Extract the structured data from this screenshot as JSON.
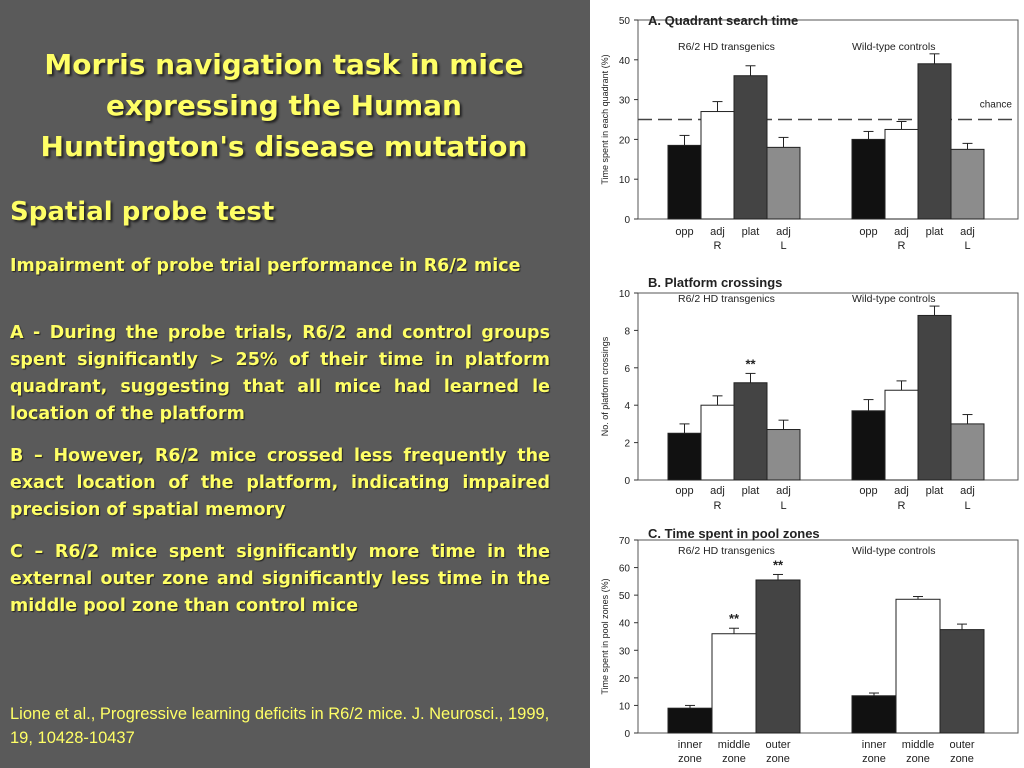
{
  "slide": {
    "title": "Morris navigation task in mice expressing the Human Huntington's disease mutation",
    "subtitle": "Spatial probe test",
    "paragraphs": [
      "Impairment of probe trial performance in R6/2 mice",
      "A - During the probe trials, R6/2 and control groups spent significantly > 25% of their time in platform quadrant, suggesting that all mice had learned le location of the platform",
      "B – However, R6/2 mice crossed less frequently the exact location of the platform, indicating impaired precision of spatial memory",
      "C – R6/2 mice spent significantly more time in the external outer zone and significantly less time in the middle pool zone than control mice"
    ],
    "citation": "Lione et al., Progressive learning deficits in R6/2 mice. J. Neurosci., 1999, 19, 10428-10437"
  },
  "colors": {
    "background": "#5a5a5a",
    "text": "#ffff66",
    "black_bar": "#111111",
    "white_bar": "#ffffff",
    "dark_bar": "#444444",
    "gray_bar": "#8c8c8c"
  },
  "chart_data": [
    {
      "type": "bar",
      "title": "A. Quadrant search time",
      "ylabel": "Time spent in each quadrant (%)",
      "ylim": [
        0,
        50
      ],
      "yticks": [
        0,
        10,
        20,
        30,
        40,
        50
      ],
      "groups": [
        "R6/2 HD transgenics",
        "Wild-type controls"
      ],
      "categories": [
        "opp",
        "adj R",
        "plat",
        "adj L"
      ],
      "category_lines": [
        [
          "opp",
          ""
        ],
        [
          "adj",
          "R"
        ],
        [
          "plat",
          ""
        ],
        [
          "adj",
          "L"
        ]
      ],
      "series": [
        {
          "values": [
            18.5,
            27,
            36,
            18
          ],
          "errors": [
            2.5,
            2.5,
            2.5,
            2.5
          ]
        },
        {
          "values": [
            20,
            22.5,
            39,
            17.5
          ],
          "errors": [
            2,
            2,
            2.5,
            1.5
          ]
        }
      ],
      "reference_line": {
        "value": 25,
        "label": "chance"
      }
    },
    {
      "type": "bar",
      "title": "B. Platform crossings",
      "ylabel": "No. of platform crossings",
      "ylim": [
        0,
        10
      ],
      "yticks": [
        0,
        2,
        4,
        6,
        8,
        10
      ],
      "groups": [
        "R6/2 HD transgenics",
        "Wild-type controls"
      ],
      "categories": [
        "opp",
        "adj R",
        "plat",
        "adj L"
      ],
      "category_lines": [
        [
          "opp",
          ""
        ],
        [
          "adj",
          "R"
        ],
        [
          "plat",
          ""
        ],
        [
          "adj",
          "L"
        ]
      ],
      "series": [
        {
          "values": [
            2.5,
            4.0,
            5.2,
            2.7
          ],
          "errors": [
            0.5,
            0.5,
            0.5,
            0.5
          ],
          "annotations": [
            "",
            "",
            "**",
            ""
          ]
        },
        {
          "values": [
            3.7,
            4.8,
            8.8,
            3.0
          ],
          "errors": [
            0.6,
            0.5,
            0.5,
            0.5
          ]
        }
      ]
    },
    {
      "type": "bar",
      "title": "C. Time spent in pool zones",
      "ylabel": "Time spent in pool zones (%)",
      "ylim": [
        0,
        70
      ],
      "yticks": [
        0,
        10,
        20,
        30,
        40,
        50,
        60,
        70
      ],
      "groups": [
        "R6/2 HD transgenics",
        "Wild-type controls"
      ],
      "categories": [
        "inner zone",
        "middle zone",
        "outer zone"
      ],
      "category_lines": [
        [
          "inner",
          "zone"
        ],
        [
          "middle",
          "zone"
        ],
        [
          "outer",
          "zone"
        ]
      ],
      "series": [
        {
          "values": [
            9,
            36,
            55.5
          ],
          "errors": [
            1,
            2,
            2
          ],
          "annotations": [
            "",
            "**",
            "**"
          ]
        },
        {
          "values": [
            13.5,
            48.5,
            37.5
          ],
          "errors": [
            1,
            1,
            2
          ]
        }
      ]
    }
  ]
}
